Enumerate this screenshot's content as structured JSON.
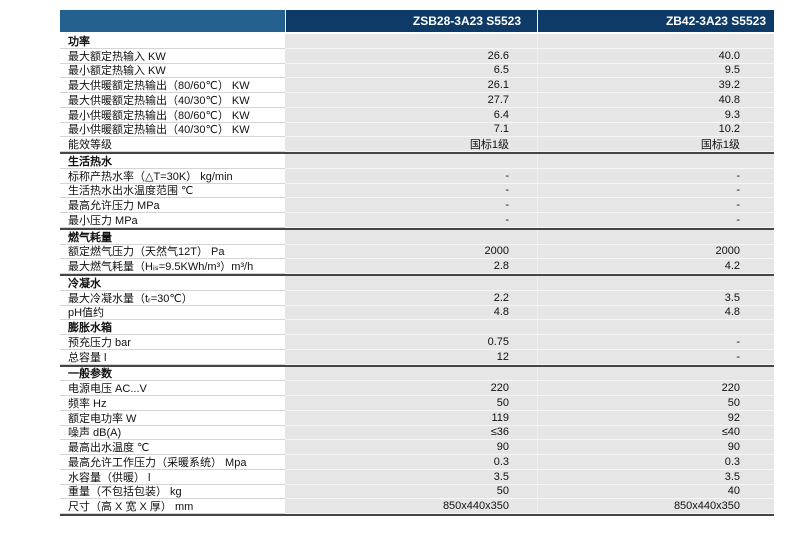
{
  "colors": {
    "header_left_blue": "#24618f",
    "header_right_navy": "#0d3a66",
    "value_cell_gray": "#e6e6e6",
    "section_rule_dark": "#454545"
  },
  "table": {
    "columns": [
      "ZSB28-3A23 S5523",
      "ZB42-3A23 S5523"
    ],
    "rows": [
      {
        "type": "section",
        "label": "功率",
        "v1": "",
        "v2": ""
      },
      {
        "type": "data",
        "label": "最大额定热输入 KW",
        "v1": "26.6",
        "v2": "40.0"
      },
      {
        "type": "data",
        "label": "最小额定热输入 KW",
        "v1": "6.5",
        "v2": "9.5"
      },
      {
        "type": "data",
        "label": "最大供暖额定热输出（80/60℃） KW",
        "v1": "26.1",
        "v2": "39.2"
      },
      {
        "type": "data",
        "label": "最大供暖额定热输出（40/30℃） KW",
        "v1": "27.7",
        "v2": "40.8"
      },
      {
        "type": "data",
        "label": "最小供暖额定热输出（80/60℃） KW",
        "v1": "6.4",
        "v2": "9.3"
      },
      {
        "type": "data",
        "label": "最小供暖额定热输出（40/30℃） KW",
        "v1": "7.1",
        "v2": "10.2"
      },
      {
        "type": "data",
        "label": "能效等级",
        "v1": "国标1级",
        "v2": "国标1级"
      },
      {
        "type": "section",
        "label": "生活热水",
        "v1": "",
        "v2": ""
      },
      {
        "type": "data",
        "label": "标称产热水率（△T=30K） kg/min",
        "v1": "-",
        "v2": "-"
      },
      {
        "type": "data",
        "label": "生活热水出水温度范围 ℃",
        "v1": "-",
        "v2": "-"
      },
      {
        "type": "data",
        "label": "最高允许压力 MPa",
        "v1": "-",
        "v2": "-"
      },
      {
        "type": "data",
        "label": "最小压力 MPa",
        "v1": "-",
        "v2": "-"
      },
      {
        "type": "section",
        "label": "燃气耗量",
        "v1": "",
        "v2": ""
      },
      {
        "type": "data",
        "label": "额定燃气压力（天然气12T） Pa",
        "v1": "2000",
        "v2": "2000"
      },
      {
        "type": "data",
        "label": "最大燃气耗量（Hᵢₛ=9.5KWh/m³）m³/h",
        "v1": "2.8",
        "v2": "4.2"
      },
      {
        "type": "section",
        "label": "冷凝水",
        "v1": "",
        "v2": ""
      },
      {
        "type": "data",
        "label": "最大冷凝水量（tᵣ=30℃）",
        "v1": "2.2",
        "v2": "3.5"
      },
      {
        "type": "data",
        "label": "pH值约",
        "v1": "4.8",
        "v2": "4.8"
      },
      {
        "type": "subsection",
        "label": "膨胀水箱",
        "v1": "",
        "v2": ""
      },
      {
        "type": "data",
        "label": "预充压力 bar",
        "v1": "0.75",
        "v2": "-"
      },
      {
        "type": "data",
        "label": "总容量 l",
        "v1": "12",
        "v2": "-"
      },
      {
        "type": "section",
        "label": "一般参数",
        "v1": "",
        "v2": ""
      },
      {
        "type": "data",
        "label": "电源电压 AC...V",
        "v1": "220",
        "v2": "220"
      },
      {
        "type": "data",
        "label": "频率 Hz",
        "v1": "50",
        "v2": "50"
      },
      {
        "type": "data",
        "label": "额定电功率 W",
        "v1": "119",
        "v2": "92"
      },
      {
        "type": "data",
        "label": "噪声 dB(A)",
        "v1": "≤36",
        "v2": "≤40"
      },
      {
        "type": "data",
        "label": "最高出水温度 ℃",
        "v1": "90",
        "v2": "90"
      },
      {
        "type": "data",
        "label": "最高允许工作压力（采暖系统） Mpa",
        "v1": "0.3",
        "v2": "0.3"
      },
      {
        "type": "data",
        "label": "水容量（供暖） l",
        "v1": "3.5",
        "v2": "3.5"
      },
      {
        "type": "data",
        "label": "重量（不包括包装） kg",
        "v1": "50",
        "v2": "40"
      },
      {
        "type": "data",
        "label": "尺寸（高 X 宽 X 厚） mm",
        "v1": "850x440x350",
        "v2": "850x440x350"
      }
    ]
  }
}
